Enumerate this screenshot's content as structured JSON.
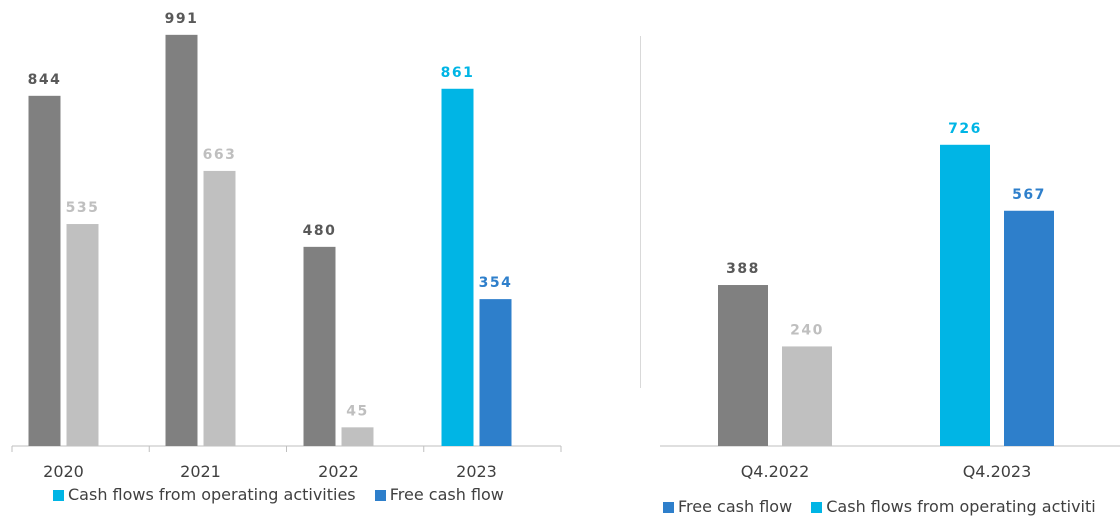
{
  "colors": {
    "dark_gray": "#808080",
    "light_gray": "#c0c0c0",
    "cyan": "#00b5e5",
    "blue": "#2e7fcb",
    "axis": "#bfbfbf",
    "tick_label": "#404040"
  },
  "chart_data": [
    {
      "type": "bar",
      "categories": [
        "2020",
        "2021",
        "2022",
        "2023"
      ],
      "series": [
        {
          "name": "Cash flows from operating activities",
          "values": [
            844,
            991,
            480,
            861
          ]
        },
        {
          "name": "Free cash flow",
          "values": [
            535,
            663,
            45,
            354
          ]
        }
      ],
      "data_labels": [
        [
          "844",
          "991",
          "480",
          "861"
        ],
        [
          "535",
          "663",
          "45",
          "354"
        ]
      ],
      "bar_colors": [
        [
          "#808080",
          "#808080",
          "#808080",
          "#00b5e5"
        ],
        [
          "#c0c0c0",
          "#c0c0c0",
          "#c0c0c0",
          "#2e7fcb"
        ]
      ],
      "label_colors": [
        [
          "#595959",
          "#595959",
          "#595959",
          "#00b5e5"
        ],
        [
          "#bfbfbf",
          "#bfbfbf",
          "#bfbfbf",
          "#2e7fcb"
        ]
      ],
      "ylim": [
        0,
        1000
      ],
      "grid": false,
      "legend_position": "bottom-left"
    },
    {
      "type": "bar",
      "categories": [
        "Q4.2022",
        "Q4.2023"
      ],
      "series": [
        {
          "name": "Cash flows from operating activities",
          "values": [
            388,
            726
          ]
        },
        {
          "name": "Free cash flow",
          "values": [
            240,
            567
          ]
        }
      ],
      "data_labels": [
        [
          "388",
          "726"
        ],
        [
          "240",
          "567"
        ]
      ],
      "bar_colors": [
        [
          "#808080",
          "#00b5e5"
        ],
        [
          "#c0c0c0",
          "#2e7fcb"
        ]
      ],
      "label_colors": [
        [
          "#595959",
          "#00b5e5"
        ],
        [
          "#bfbfbf",
          "#2e7fcb"
        ]
      ],
      "ylim": [
        0,
        1000
      ],
      "grid": false,
      "legend_position": "bottom-right"
    }
  ],
  "legend_left": {
    "items": [
      {
        "label": "Cash flows from operating activities",
        "color": "#00b5e5"
      },
      {
        "label": "Free cash flow",
        "color": "#2e7fcb"
      }
    ]
  },
  "legend_right": {
    "items": [
      {
        "label": "Free cash flow",
        "color": "#2e7fcb"
      },
      {
        "label": "Cash flows from operating activiti",
        "color": "#00b5e5"
      }
    ]
  }
}
